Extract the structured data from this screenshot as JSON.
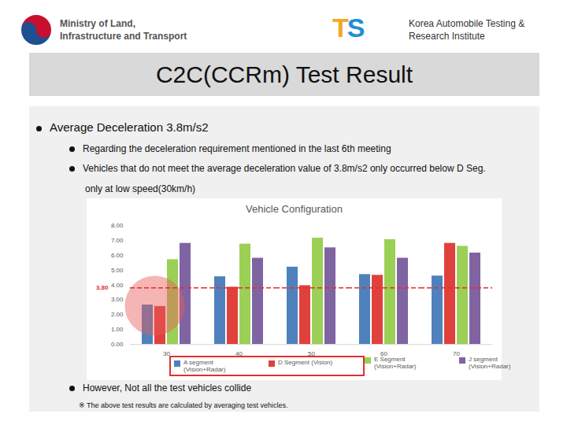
{
  "header": {
    "ministry": "Ministry of Land, Infrastructure and Transport",
    "logo": "TS",
    "institute": "Korea Automobile Testing & Research Institute"
  },
  "title": "C2C(CCRm) Test Result",
  "bullets": [
    {
      "text": "Average Deceleration 3.8m/s2",
      "sub": [
        "Regarding the deceleration requirement mentioned in the last 6th meeting",
        "Vehicles that do not meet the average deceleration value of 3.8m/s2 only occurred below D Seg.",
        "only at low speed(30km/h)"
      ]
    }
  ],
  "chart_data": {
    "type": "bar",
    "title": "Vehicle Configuration",
    "categories": [
      "30",
      "40",
      "50",
      "60",
      "70"
    ],
    "series": [
      {
        "name": "A segment (Vision+Radar)",
        "color": "#4f81bd",
        "values": [
          2.65,
          4.55,
          5.2,
          4.7,
          4.6
        ]
      },
      {
        "name": "D Segment (Vision)",
        "color": "#e0413c",
        "values": [
          2.55,
          3.85,
          3.95,
          4.65,
          6.8
        ]
      },
      {
        "name": "E Segment (Vision+Radar)",
        "color": "#9bcf56",
        "values": [
          5.7,
          6.75,
          7.15,
          7.05,
          6.6
        ]
      },
      {
        "name": "J segment (Vision+Radar)",
        "color": "#8064a2",
        "values": [
          6.8,
          5.8,
          6.5,
          5.8,
          6.15
        ]
      }
    ],
    "ylim": [
      0,
      8
    ],
    "yticks": [
      {
        "value": 0,
        "label": "0.00"
      },
      {
        "value": 1,
        "label": "1.00"
      },
      {
        "value": 2,
        "label": "2.00"
      },
      {
        "value": 3,
        "label": "3.00"
      },
      {
        "value": 4,
        "label": "4.00"
      },
      {
        "value": 5,
        "label": "5.00"
      },
      {
        "value": 6,
        "label": "6.00"
      },
      {
        "value": 7,
        "label": "7.00"
      },
      {
        "value": 8,
        "label": "8.00"
      }
    ],
    "reference_line": {
      "value": 3.8,
      "label": "3.80",
      "color": "#e03030"
    },
    "grid": false,
    "legend": "bottom",
    "data_labels": false
  },
  "closing_bullet": "However, Not all the test vehicles collide",
  "footnote": "※ The above test results are calculated by averaging test vehicles."
}
